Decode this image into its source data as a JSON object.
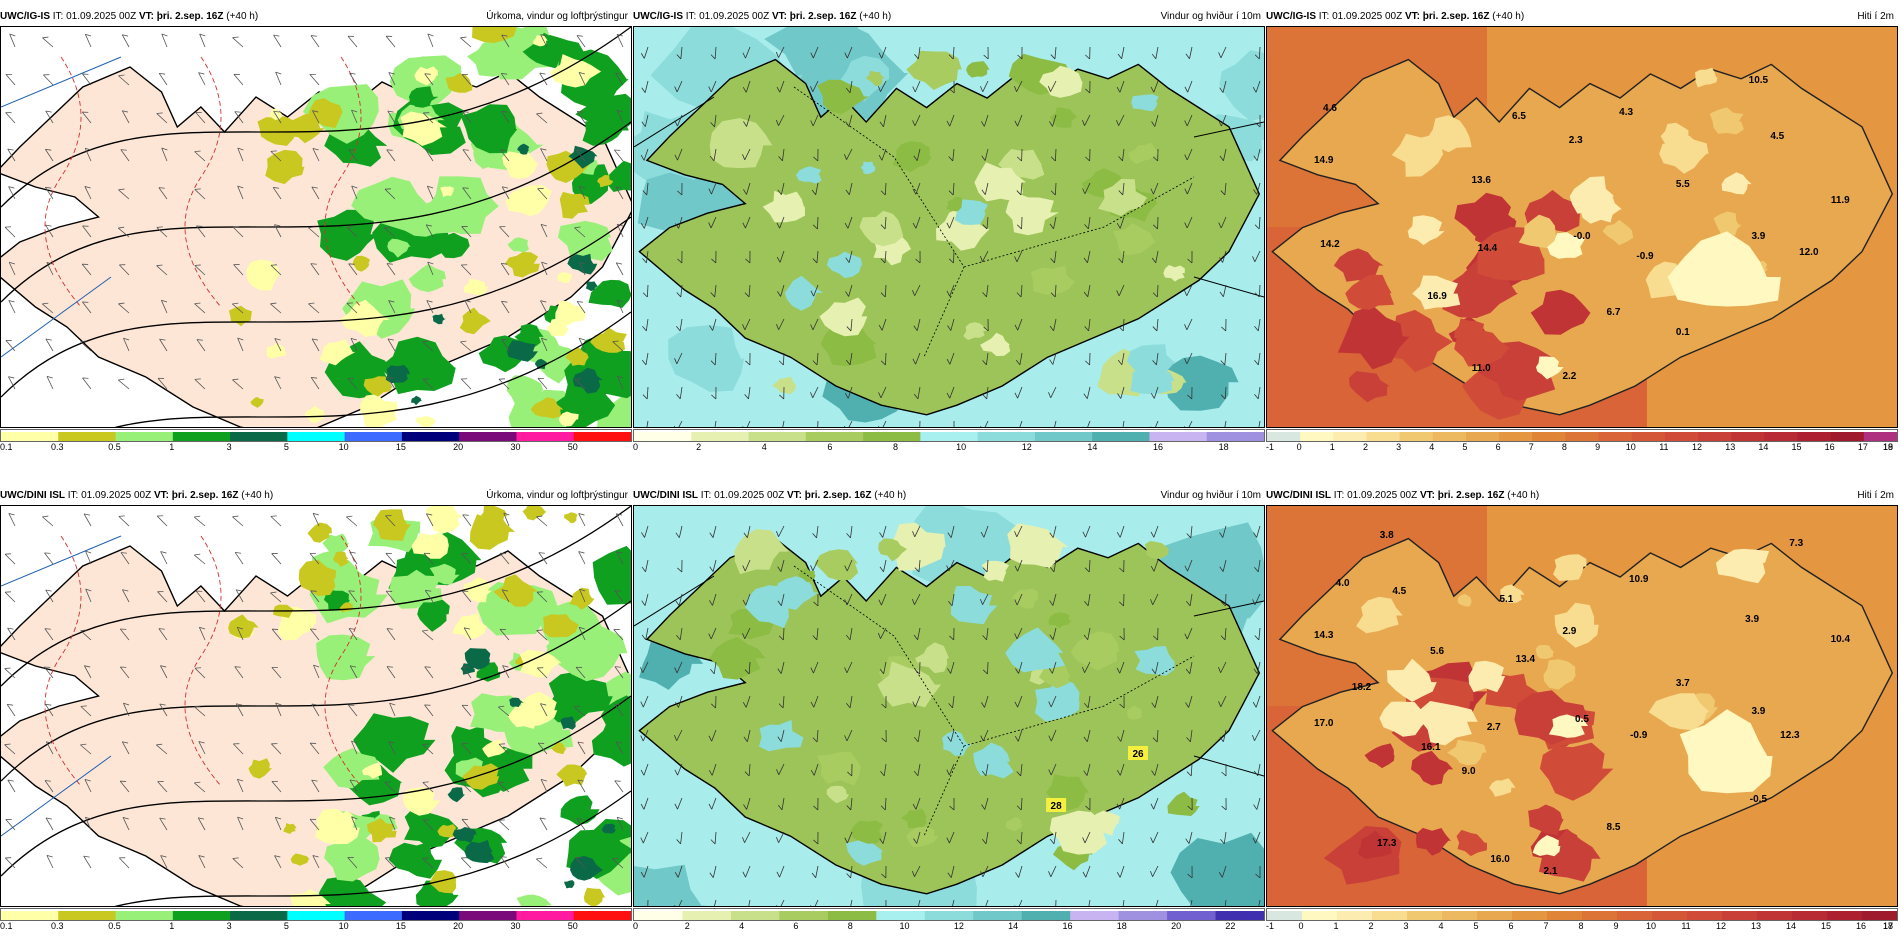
{
  "panels": [
    {
      "row": 0,
      "col": 0,
      "kind": "precip",
      "model": "UWC/IG-IS",
      "it_label": "IT:",
      "it_value": "01.09.2025 00Z",
      "vt_label": "VT:",
      "vt_value": "þri. 2.sep. 16Z",
      "lead": "(+40 h)",
      "title": "Úrkoma, vindur og loftþrýstingur",
      "colorbar": {
        "colors": [
          "#ffffa8",
          "#c8c820",
          "#98f078",
          "#10a020",
          "#0a6a48",
          "#00ffff",
          "#3c6cff",
          "#00007a",
          "#7a0a7a",
          "#ff1aa0",
          "#ff1010"
        ],
        "ticks": [
          "0.1",
          "0.3",
          "0.5",
          "1",
          "3",
          "5",
          "10",
          "15",
          "20",
          "30",
          "50"
        ]
      }
    },
    {
      "row": 0,
      "col": 1,
      "kind": "wind",
      "model": "UWC/IG-IS",
      "it_label": "IT:",
      "it_value": "01.09.2025 00Z",
      "vt_label": "VT:",
      "vt_value": "þri. 2.sep. 16Z",
      "lead": "(+40 h)",
      "title": "Vindur og hviður í 10m",
      "colorbar": {
        "colors": [
          "#ffffe8",
          "#e6f0b0",
          "#c8e08a",
          "#a8cc60",
          "#8cbc44",
          "#a8f0f0",
          "#8cdcdc",
          "#70c8c8",
          "#50b0b0",
          "#c8b4f0",
          "#a090e0"
        ],
        "ticks": [
          "0",
          "2",
          "4",
          "6",
          "8",
          "10",
          "12",
          "14",
          "16",
          "18"
        ]
      }
    },
    {
      "row": 0,
      "col": 2,
      "kind": "temp",
      "model": "UWC/IG-IS",
      "it_label": "IT:",
      "it_value": "01.09.2025 00Z",
      "vt_label": "VT:",
      "vt_value": "þri. 2.sep. 16Z",
      "lead": "(+40 h)",
      "title": "Hiti í 2m",
      "colorbar": {
        "colors": [
          "#d8e8e0",
          "#fff8c0",
          "#fcecb0",
          "#f8dc90",
          "#f0c870",
          "#ecb860",
          "#e8a850",
          "#e49640",
          "#e08438",
          "#dc7438",
          "#d86438",
          "#d45838",
          "#d04c38",
          "#c84038",
          "#c03436",
          "#b82a34",
          "#ac2030",
          "#a01a2e",
          "#b03080"
        ],
        "ticks": [
          "-1",
          "0",
          "1",
          "2",
          "3",
          "4",
          "5",
          "6",
          "7",
          "8",
          "9",
          "10",
          "11",
          "12",
          "13",
          "14",
          "15",
          "16",
          "17",
          "18",
          "19"
        ]
      },
      "values": [
        "4.6",
        "6.5",
        "2.3",
        "4.3",
        "10.5",
        "4.5",
        "14.9",
        "13.6",
        "5.5",
        "11.9",
        "14.2",
        "14.4",
        "-0.0",
        "-0.9",
        "3.9",
        "12.0",
        "16.9",
        "6.7",
        "0.1",
        "11.0",
        "2.2"
      ]
    },
    {
      "row": 1,
      "col": 0,
      "kind": "precip",
      "model": "UWC/DINI ISL",
      "it_label": "IT:",
      "it_value": "01.09.2025 00Z",
      "vt_label": "VT:",
      "vt_value": "þri. 2.sep. 16Z",
      "lead": "(+40 h)",
      "title": "Úrkoma, vindur og loftþrýstingur",
      "colorbar": {
        "colors": [
          "#ffffa8",
          "#c8c820",
          "#98f078",
          "#10a020",
          "#0a6a48",
          "#00ffff",
          "#3c6cff",
          "#00007a",
          "#7a0a7a",
          "#ff1aa0",
          "#ff1010"
        ],
        "ticks": [
          "0.1",
          "0.3",
          "0.5",
          "1",
          "3",
          "5",
          "10",
          "15",
          "20",
          "30",
          "50"
        ]
      }
    },
    {
      "row": 1,
      "col": 1,
      "kind": "wind",
      "model": "UWC/DINI ISL",
      "it_label": "IT:",
      "it_value": "01.09.2025 00Z",
      "vt_label": "VT:",
      "vt_value": "þri. 2.sep. 16Z",
      "lead": "(+40 h)",
      "title": "Vindur og hviður í 10m",
      "colorbar": {
        "colors": [
          "#ffffe8",
          "#e6f0b0",
          "#c8e08a",
          "#a8cc60",
          "#8cbc44",
          "#a8f0f0",
          "#8cdcdc",
          "#70c8c8",
          "#50b0b0",
          "#c8b4f0",
          "#a090e0",
          "#7060d0",
          "#4030b0"
        ],
        "ticks": [
          "0",
          "2",
          "4",
          "6",
          "8",
          "10",
          "12",
          "14",
          "16",
          "18",
          "20",
          "22"
        ]
      },
      "values": [
        "26",
        "28"
      ]
    },
    {
      "row": 1,
      "col": 2,
      "kind": "temp",
      "model": "UWC/DINI ISL",
      "it_label": "IT:",
      "it_value": "01.09.2025 00Z",
      "vt_label": "VT:",
      "vt_value": "þri. 2.sep. 16Z",
      "lead": "(+40 h)",
      "title": "Hiti í 2m",
      "colorbar": {
        "colors": [
          "#d8e8e0",
          "#fff8c0",
          "#fcecb0",
          "#f8dc90",
          "#f0c870",
          "#ecb860",
          "#e8a850",
          "#e49640",
          "#e08438",
          "#dc7438",
          "#d86438",
          "#d45838",
          "#d04c38",
          "#c84038",
          "#c03436",
          "#b82a34",
          "#ac2030",
          "#a01a2e"
        ],
        "ticks": [
          "-1",
          "0",
          "1",
          "2",
          "3",
          "4",
          "5",
          "6",
          "7",
          "8",
          "9",
          "10",
          "11",
          "12",
          "13",
          "14",
          "15",
          "16",
          "17",
          "18"
        ]
      },
      "values": [
        "3.8",
        "7.3",
        "4.0",
        "4.5",
        "5.1",
        "10.9",
        "14.3",
        "5.6",
        "13.4",
        "2.9",
        "3.9",
        "10.4",
        "18.2",
        "3.7",
        "17.0",
        "2.7",
        "0.5",
        "-0.9",
        "3.9",
        "12.3",
        "16.1",
        "9.0",
        "8.5",
        "-0.5",
        "17.3",
        "16.0",
        "2.1"
      ]
    }
  ]
}
